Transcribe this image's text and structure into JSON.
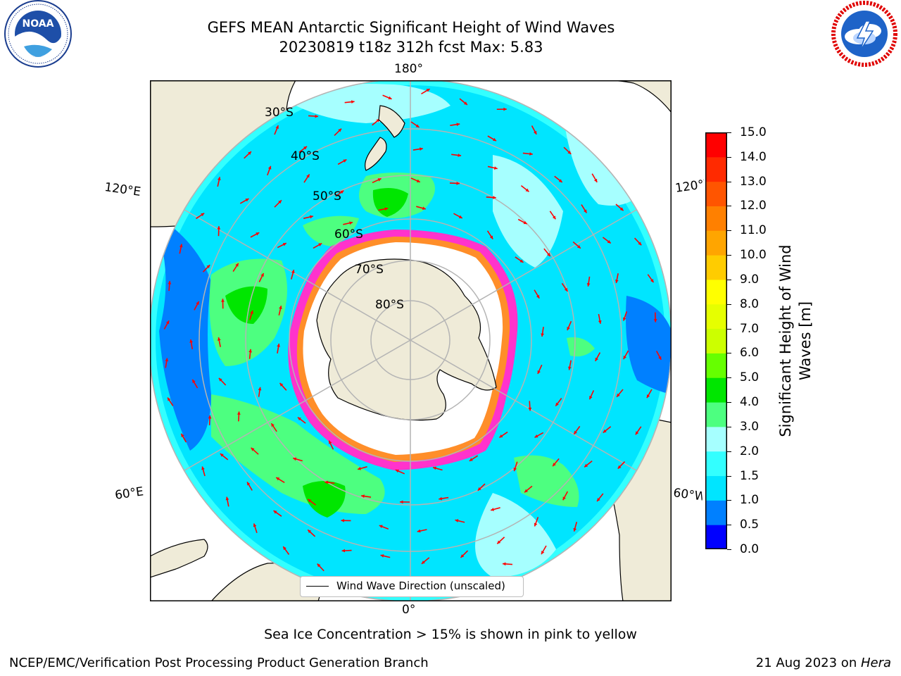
{
  "header": {
    "title_line1": "GEFS MEAN Antarctic Significant Height of Wind Waves",
    "title_line2": "20230819 t18z 312h fcst   Max: 5.83"
  },
  "logos": {
    "left": {
      "icon": "noaa-logo",
      "text": "NOAA",
      "ring_text": "NATIONAL OCEANIC AND ATMOSPHERIC ADMINISTRATION · U.S. DEPARTMENT OF COMMERCE"
    },
    "right": {
      "icon": "nws-logo",
      "ring_text": "NATIONAL WEATHER SERVICE"
    }
  },
  "map": {
    "projection": "south-polar-stereographic",
    "colors": {
      "land": "#efebd8",
      "ocean_outside": "#ffffff",
      "ice_interior": "#ffffff",
      "grid": "#b4b4b4",
      "arrow": "#ff0000",
      "sea_ice_edge": "#ff33cc"
    },
    "longitude_labels": {
      "top": "180°",
      "bottom": "0°",
      "upper_left": "120°E",
      "lower_left": "60°E",
      "upper_right": "120°W",
      "lower_right": "60°W"
    },
    "latitude_labels": [
      "30°S",
      "40°S",
      "50°S",
      "60°S",
      "70°S",
      "80°S"
    ],
    "legend_label": "Wind Wave Direction (unscaled)"
  },
  "colorbar": {
    "label": "Significant Height of Wind Waves [m]",
    "ticks": [
      "0.0",
      "0.5",
      "1.0",
      "1.5",
      "2.0",
      "3.0",
      "4.0",
      "5.0",
      "6.0",
      "7.0",
      "8.0",
      "9.0",
      "10.0",
      "11.0",
      "12.0",
      "13.0",
      "14.0",
      "15.0"
    ],
    "colors": [
      "#0000ff",
      "#0080ff",
      "#00e5ff",
      "#33ffff",
      "#a6ffff",
      "#4dff80",
      "#00e600",
      "#66ff00",
      "#ccff00",
      "#e6ff00",
      "#ffff00",
      "#ffcc00",
      "#ffa500",
      "#ff8000",
      "#ff5500",
      "#ff2a00",
      "#ff0000"
    ]
  },
  "footer": {
    "note": "Sea Ice Concentration > 15% is shown in pink to yellow",
    "credit_left": "NCEP/EMC/Verification Post Processing Product Generation Branch",
    "credit_right_date": "21 Aug 2023 on ",
    "credit_right_host": "Hera"
  }
}
